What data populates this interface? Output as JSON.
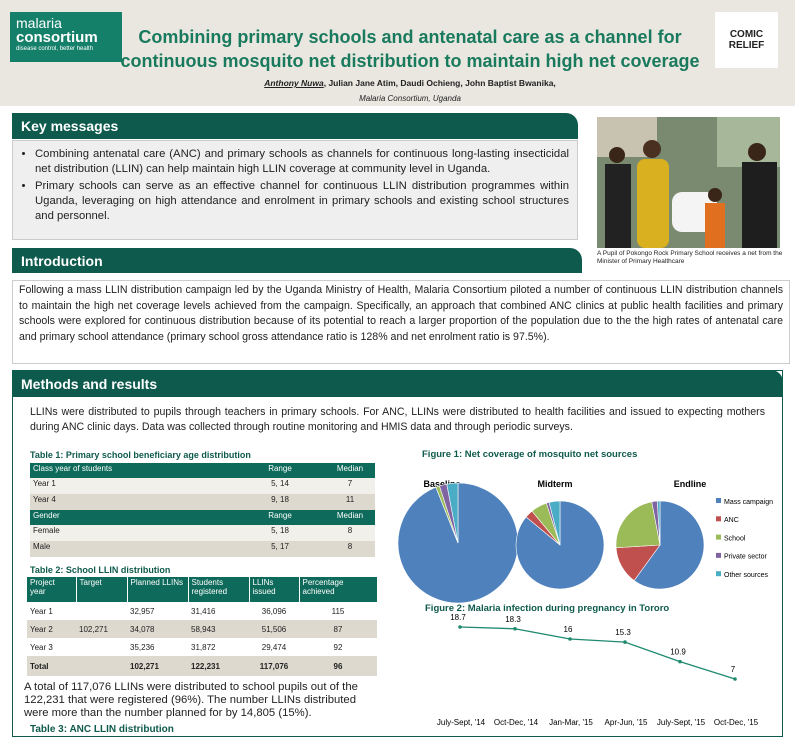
{
  "header": {
    "logo_left": {
      "line1": "malaria",
      "line2": "consortium",
      "tagline": "disease control, better health"
    },
    "title": [
      "Combining primary schools and antenatal care as a channel for",
      "continuous mosquito net distribution to maintain high net coverage"
    ],
    "lead_author": "Anthony Nuwa",
    "other_authors": ", Julian Jane Atim, Daudi Ochieng, John Baptist Bwanika,",
    "affiliation": "Malaria Consortium, Uganda",
    "logo_right": [
      "COMIC",
      "RELIEF"
    ]
  },
  "key_messages": {
    "heading": "Key messages",
    "items": [
      "Combining antenatal care (ANC) and primary schools as channels for continuous long-lasting insecticidal net distribution (LLIN) can help maintain high LLIN coverage at community level in Uganda.",
      "Primary schools can serve as an effective channel for continuous LLIN distribution programmes within Uganda, leveraging on high attendance and enrolment in primary schools and existing school structures and personnel."
    ]
  },
  "photo_caption": "A Pupil of  Pokongo Rock Primary School receives a net from the Minister of Primary Healthcare",
  "introduction": {
    "heading": "Introduction",
    "text": "Following a mass LLIN distribution campaign led by the Uganda Ministry of Health, Malaria Consortium piloted a number of continuous LLIN distribution channels to maintain the high net coverage levels achieved from the campaign. Specifically,  an approach that combined ANC clinics at public health facilities and primary schools were explored for continuous distribution because of its potential to reach a larger proportion of the population due to the the high rates of antenatal care and primary school attendance (primary school gross attendance ratio is 128% and net enrolment ratio is 97.5%)."
  },
  "methods": {
    "heading": "Methods and results",
    "text": "LLINs were distributed to pupils through teachers in primary schools. For ANC, LLINs were distributed to health facilities and issued to expecting mothers during ANC clinic days. Data was collected through routine monitoring and HMIS data and through periodic surveys."
  },
  "table1": {
    "title": "Table 1: Primary school beneficiary age distribution",
    "sections": [
      {
        "header": [
          "Class year of students",
          "Range",
          "Median"
        ],
        "rows": [
          [
            "Year 1",
            "5, 14",
            "7"
          ],
          [
            "Year 4",
            "9, 18",
            "11"
          ]
        ]
      },
      {
        "header": [
          "Gender",
          "Range",
          "Median"
        ],
        "rows": [
          [
            "Female",
            "5, 18",
            "8"
          ],
          [
            "Male",
            "5, 17",
            "8"
          ]
        ]
      }
    ]
  },
  "table2": {
    "title": "Table 2: School LLIN distribution",
    "header": [
      "Project year",
      "Target",
      "Planned LLINs",
      "Students registered",
      "LLINs issued",
      "Percentage achieved"
    ],
    "rows": [
      [
        "Year 1",
        null,
        "32,957",
        "31,416",
        "36,096",
        "115"
      ],
      [
        "Year 2",
        "102,271",
        "34,078",
        "58,943",
        "51,506",
        "87"
      ],
      [
        "Year 3",
        null,
        "35,236",
        "31,872",
        "29,474",
        "92"
      ],
      [
        "Total",
        null,
        "102,271",
        "122,231",
        "117,076",
        "96"
      ]
    ]
  },
  "summary": "A total of 117,076 LLINs were distributed to school pupils out of the 122,231 that were registered (96%).  The number LLINs distributed were more than the number planned for by 14,805 (15%).",
  "table3": {
    "title": "Table 3: ANC LLIN distribution"
  },
  "chart_data": [
    {
      "type": "pie",
      "title": "Figure 1: Net coverage of mosquito net sources",
      "categories": [
        "Mass campaign",
        "ANC",
        "School",
        "Private sector",
        "Other sources"
      ],
      "colors": [
        "#4f81bd",
        "#c0504d",
        "#9bbb59",
        "#8064a2",
        "#4bacc6"
      ],
      "legend": "right",
      "series": [
        {
          "name": "Baseline",
          "values": [
            94,
            0,
            1,
            2,
            3
          ]
        },
        {
          "name": "Midterm",
          "values": [
            86,
            3,
            6,
            1,
            4
          ]
        },
        {
          "name": "Endline",
          "values": [
            60,
            14,
            23,
            2,
            1
          ]
        }
      ]
    },
    {
      "type": "line",
      "title": "Figure 2: Malaria infection during pregnancy in Tororo",
      "categories": [
        "July-Sept, '14",
        "Oct-Dec, '14",
        "Jan-Mar, '15",
        "Apr-Jun, '15",
        "July-Sept, '15",
        "Oct-Dec, '15"
      ],
      "values": [
        18.7,
        18.3,
        16,
        15.3,
        10.9,
        7
      ],
      "color": "#1f8a6f"
    }
  ]
}
